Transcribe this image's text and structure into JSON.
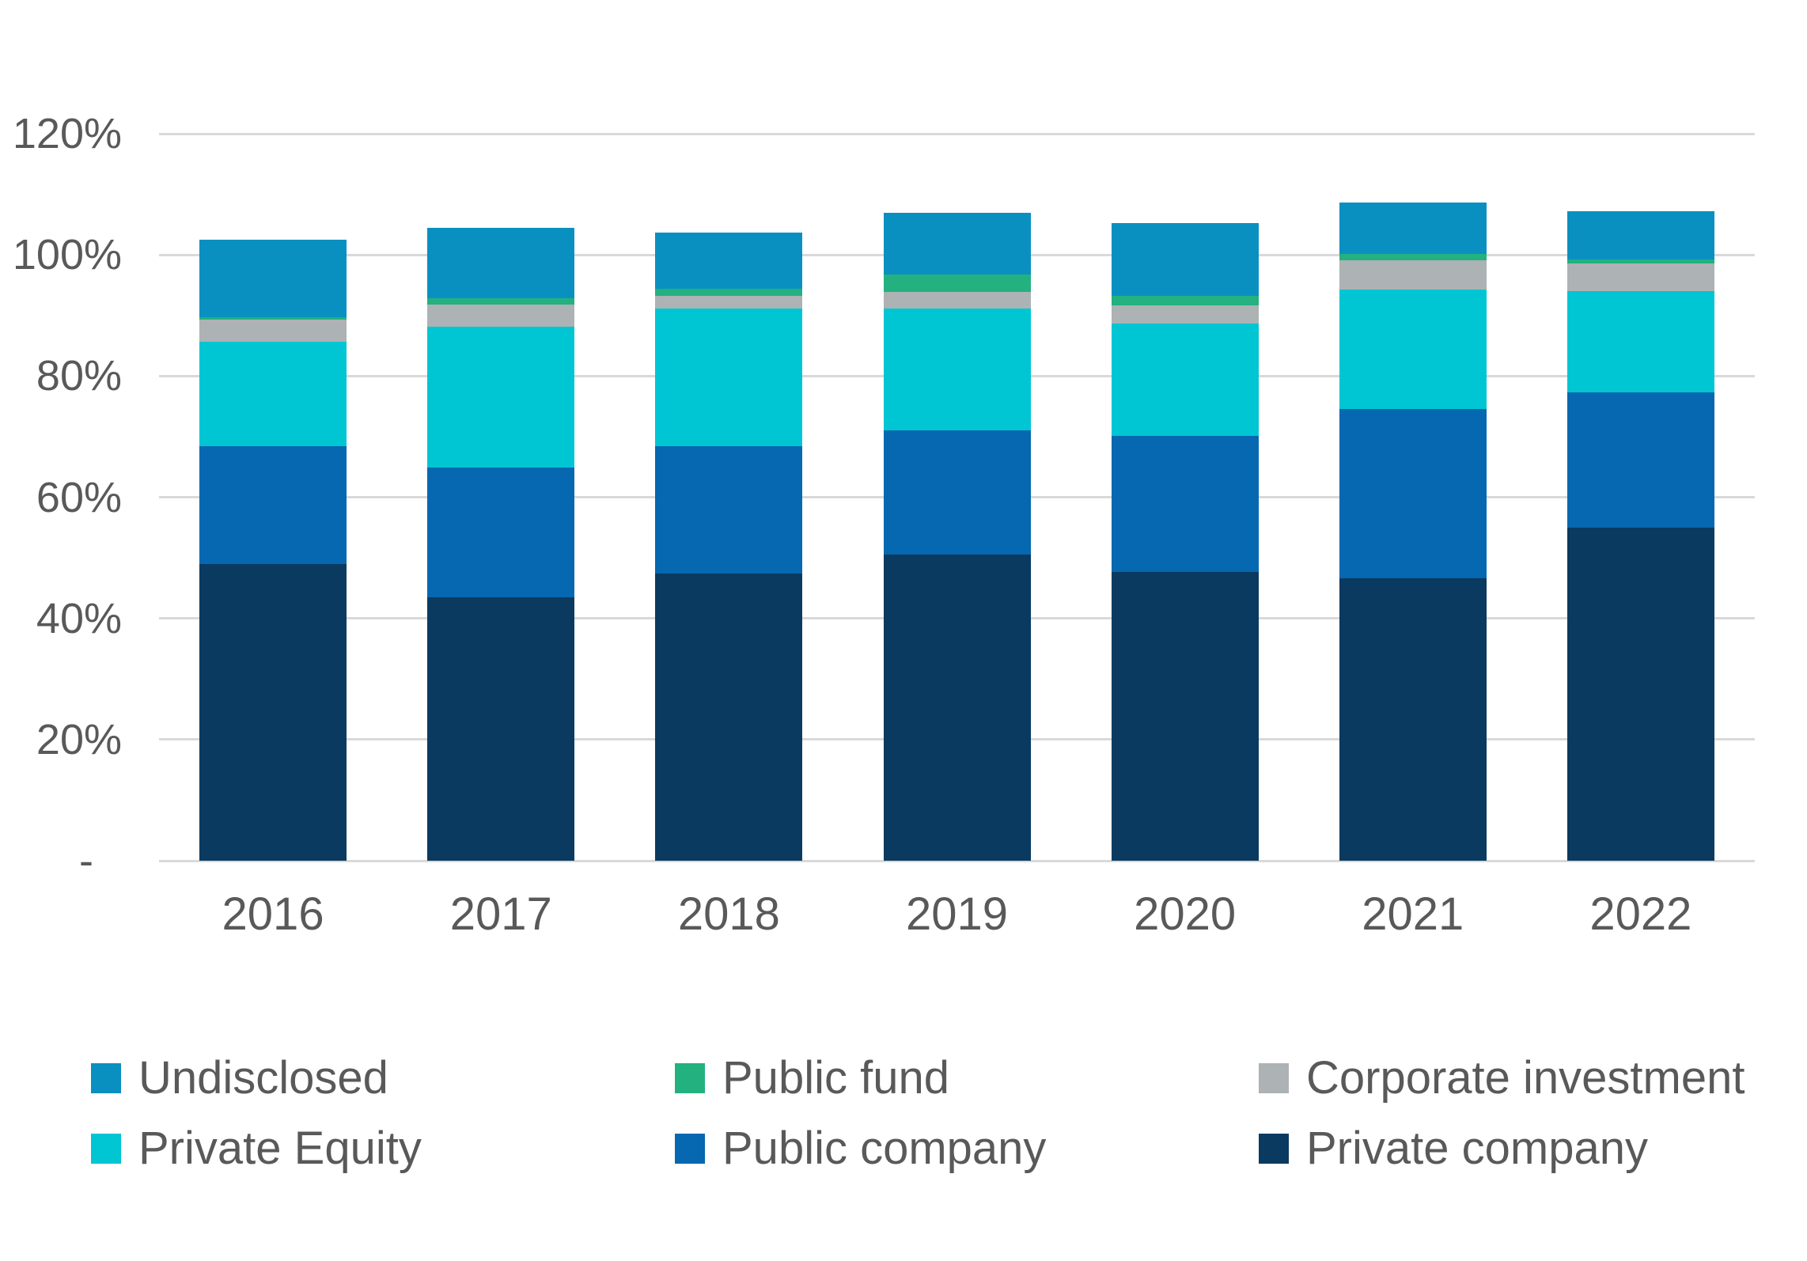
{
  "chart_data": {
    "type": "bar",
    "stacked": true,
    "title": "",
    "categories": [
      "2016",
      "2017",
      "2018",
      "2019",
      "2020",
      "2021",
      "2022"
    ],
    "series": [
      {
        "name": "Private company",
        "slug": "private-company",
        "color": "#0a3a60",
        "values": [
          49.0,
          43.5,
          47.4,
          50.5,
          47.7,
          46.6,
          55.0
        ]
      },
      {
        "name": "Public company",
        "slug": "public-company",
        "color": "#0568b0",
        "values": [
          19.4,
          21.4,
          21.0,
          20.5,
          22.4,
          28.0,
          22.3
        ]
      },
      {
        "name": "Private Equity",
        "slug": "private-equity",
        "color": "#00c5d3",
        "values": [
          17.3,
          23.3,
          22.7,
          20.1,
          18.5,
          19.7,
          16.7
        ]
      },
      {
        "name": "Corporate investment",
        "slug": "corporate-investment",
        "color": "#adb2b4",
        "values": [
          3.6,
          3.6,
          2.1,
          2.8,
          3.0,
          4.8,
          4.6
        ]
      },
      {
        "name": "Public fund",
        "slug": "public-fund",
        "color": "#23b17f",
        "values": [
          0.4,
          1.1,
          1.2,
          2.8,
          1.6,
          1.1,
          0.6
        ]
      },
      {
        "name": "Undisclosed",
        "slug": "undisclosed",
        "color": "#0990c1",
        "values": [
          12.8,
          11.5,
          9.3,
          10.2,
          12.1,
          8.5,
          8.0
        ]
      }
    ],
    "stack_totals": [
      102.5,
      104.4,
      103.7,
      106.9,
      105.3,
      108.7,
      107.2
    ],
    "y_axis": {
      "min": 0,
      "max": 120,
      "tick_step": 20,
      "ticks": [
        {
          "value": 120,
          "label": "120%"
        },
        {
          "value": 100,
          "label": "100%"
        },
        {
          "value": 80,
          "label": "80%"
        },
        {
          "value": 60,
          "label": "60%"
        },
        {
          "value": 40,
          "label": "40%"
        },
        {
          "value": 20,
          "label": "20%"
        },
        {
          "value": 0,
          "label": "-"
        }
      ],
      "grid": true
    },
    "xlabel": "",
    "ylabel": "",
    "legend": {
      "position": "bottom",
      "items": [
        {
          "label": "Undisclosed",
          "color": "#0990c1"
        },
        {
          "label": "Public fund",
          "color": "#23b17f"
        },
        {
          "label": "Corporate investment",
          "color": "#adb2b4"
        },
        {
          "label": "Private Equity",
          "color": "#00c5d3"
        },
        {
          "label": "Public company",
          "color": "#0568b0"
        },
        {
          "label": "Private company",
          "color": "#0a3a60"
        }
      ]
    }
  },
  "colors": {
    "background": "#ffffff",
    "gridline": "#d9d9d9",
    "axis_text": "#595959",
    "legend_text": "#595959"
  }
}
